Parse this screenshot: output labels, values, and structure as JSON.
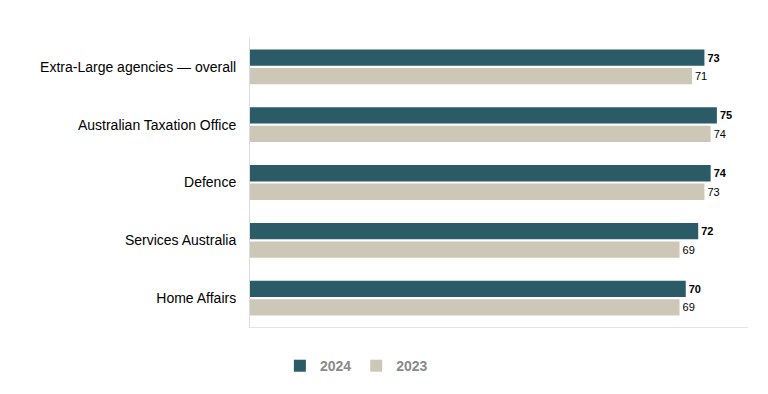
{
  "chart_data": {
    "type": "bar",
    "orientation": "horizontal",
    "categories": [
      "Extra-Large agencies — overall",
      "Australian Taxation Office",
      "Defence",
      "Services Australia",
      "Home Affairs"
    ],
    "series": [
      {
        "name": "2024",
        "color": "#2b5b66",
        "values": [
          73,
          75,
          74,
          72,
          70
        ]
      },
      {
        "name": "2023",
        "color": "#cdc7b8",
        "values": [
          71,
          74,
          73,
          69,
          69
        ]
      }
    ],
    "xlim": [
      0,
      80
    ],
    "data_labels": true,
    "tick_labels": "y",
    "grid": false,
    "legend": "bottom left"
  }
}
